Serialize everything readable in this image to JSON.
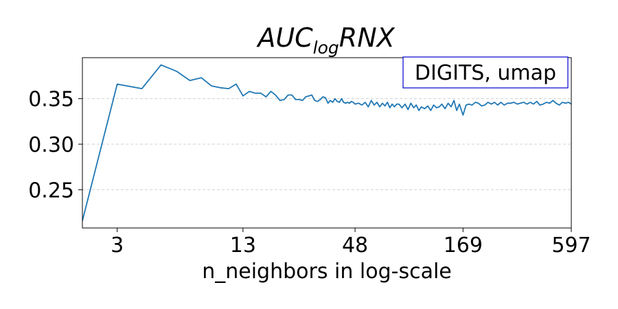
{
  "chart_data": {
    "type": "line",
    "title": {
      "base": "AUC",
      "subscript": "log",
      "rest": "RNX"
    },
    "xlabel": "n_neighbors in log-scale",
    "ylabel": "",
    "annotation": "DIGITS, umap",
    "x_scale": "log",
    "x_ticks": [
      3,
      13,
      48,
      169,
      597
    ],
    "x_tick_labels": [
      "3",
      "13",
      "48",
      "169",
      "597"
    ],
    "xlim": [
      2,
      597
    ],
    "y_ticks": [
      0.25,
      0.3,
      0.35
    ],
    "y_tick_labels": [
      "0.25",
      "0.30",
      "0.35"
    ],
    "ylim": [
      0.208,
      0.395
    ],
    "grid": "y-dashed",
    "colors": {
      "line": "#1f77b4",
      "legend_border": "#0000cc",
      "grid": "#d0d0d0"
    },
    "series": [
      {
        "x": [
          2,
          3,
          4,
          5,
          6,
          7,
          8,
          9,
          10,
          11,
          12,
          13,
          14,
          15,
          16,
          17,
          18,
          19,
          20,
          21,
          22,
          23,
          24,
          25,
          26,
          27,
          28,
          29,
          30,
          31,
          32,
          33,
          34,
          35,
          36,
          37,
          38,
          39,
          40,
          41,
          42,
          43,
          44,
          45,
          46,
          47,
          48,
          50,
          52,
          54,
          56,
          58,
          60,
          62,
          64,
          66,
          68,
          70,
          72,
          74,
          76,
          78,
          80,
          83,
          86,
          89,
          92,
          95,
          98,
          101,
          104,
          108,
          112,
          116,
          120,
          124,
          128,
          132,
          137,
          142,
          147,
          152,
          157,
          162,
          169,
          175,
          181,
          188,
          195,
          202,
          210,
          218,
          226,
          235,
          244,
          253,
          263,
          273,
          284,
          295,
          306,
          318,
          330,
          343,
          356,
          370,
          384,
          399,
          414,
          430,
          447,
          464,
          482,
          500,
          519,
          538,
          558,
          578,
          597
        ],
        "y": [
          0.216,
          0.366,
          0.361,
          0.387,
          0.38,
          0.37,
          0.373,
          0.364,
          0.362,
          0.361,
          0.366,
          0.353,
          0.358,
          0.356,
          0.356,
          0.352,
          0.358,
          0.354,
          0.348,
          0.349,
          0.354,
          0.354,
          0.349,
          0.349,
          0.348,
          0.352,
          0.353,
          0.354,
          0.348,
          0.347,
          0.349,
          0.352,
          0.351,
          0.345,
          0.348,
          0.346,
          0.35,
          0.347,
          0.346,
          0.35,
          0.346,
          0.345,
          0.346,
          0.345,
          0.347,
          0.346,
          0.344,
          0.345,
          0.343,
          0.346,
          0.341,
          0.348,
          0.343,
          0.346,
          0.341,
          0.345,
          0.342,
          0.346,
          0.34,
          0.344,
          0.341,
          0.344,
          0.344,
          0.34,
          0.344,
          0.338,
          0.345,
          0.34,
          0.343,
          0.337,
          0.341,
          0.339,
          0.342,
          0.337,
          0.343,
          0.34,
          0.341,
          0.344,
          0.339,
          0.345,
          0.341,
          0.348,
          0.337,
          0.344,
          0.332,
          0.343,
          0.344,
          0.343,
          0.346,
          0.345,
          0.342,
          0.343,
          0.346,
          0.344,
          0.346,
          0.343,
          0.346,
          0.343,
          0.345,
          0.345,
          0.346,
          0.344,
          0.345,
          0.346,
          0.344,
          0.346,
          0.344,
          0.347,
          0.343,
          0.344,
          0.346,
          0.345,
          0.348,
          0.345,
          0.343,
          0.346,
          0.345,
          0.346,
          0.344
        ]
      }
    ]
  }
}
